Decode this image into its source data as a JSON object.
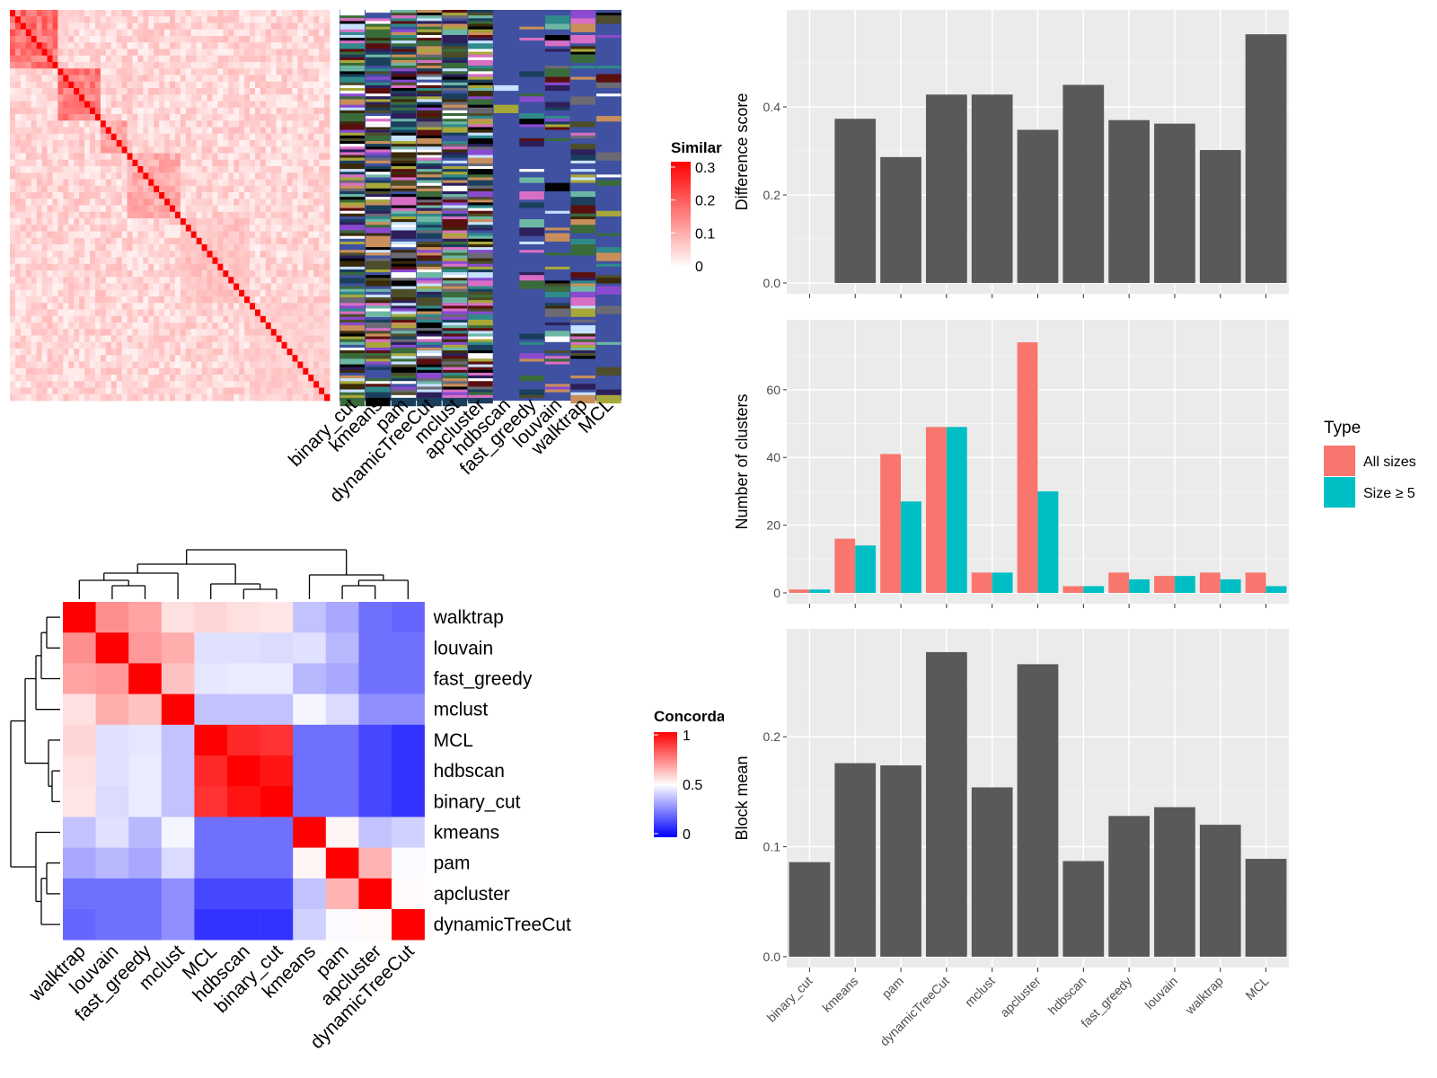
{
  "colors": {
    "panel_bg": "#ebebeb",
    "grid": "#ffffff",
    "bar": "#595959",
    "all_sizes": "#f8766d",
    "size5": "#00bfc4",
    "sim_high": "#ff0000",
    "sim_low": "#ffffff",
    "conc_high": "#ff0000",
    "conc_mid": "#ffffff",
    "conc_low": "#0000ff",
    "membership_bg": "#3f51a0"
  },
  "similarity_panel": {
    "legend_title": "Similarity",
    "legend_ticks": [
      "0.3",
      "0.2",
      "0.1",
      "0"
    ],
    "membership_columns": [
      "binary_cut",
      "kmeans",
      "pam",
      "dynamicTreeCut",
      "mclust",
      "apcluster",
      "hdbscan",
      "fast_greedy",
      "louvain",
      "walktrap",
      "MCL"
    ]
  },
  "concordance_panel": {
    "legend_title": "Concordance",
    "legend_ticks": [
      "1",
      "0.5",
      "0"
    ],
    "labels": [
      "walktrap",
      "louvain",
      "fast_greedy",
      "mclust",
      "MCL",
      "hdbscan",
      "binary_cut",
      "kmeans",
      "pam",
      "apcluster",
      "dynamicTreeCut"
    ]
  },
  "type_legend": {
    "title": "Type",
    "items": [
      {
        "label": "All sizes",
        "color": "#f8766d"
      },
      {
        "label": "Size ≥ 5",
        "color": "#00bfc4"
      }
    ]
  },
  "chart_data": [
    {
      "type": "heatmap",
      "title": "",
      "legend_title": "Similarity",
      "value_range": [
        0,
        0.3
      ],
      "legend_ticks": [
        0,
        0.1,
        0.2,
        0.3
      ]
    },
    {
      "type": "heatmap",
      "title": "",
      "legend_title": "Concordance",
      "value_range": [
        0,
        1
      ],
      "legend_ticks": [
        0,
        0.5,
        1
      ],
      "rows": [
        "walktrap",
        "louvain",
        "fast_greedy",
        "mclust",
        "MCL",
        "hdbscan",
        "binary_cut",
        "kmeans",
        "pam",
        "apcluster",
        "dynamicTreeCut"
      ],
      "columns": [
        "walktrap",
        "louvain",
        "fast_greedy",
        "mclust",
        "MCL",
        "hdbscan",
        "binary_cut",
        "kmeans",
        "pam",
        "apcluster",
        "dynamicTreeCut"
      ],
      "values": [
        [
          1.0,
          0.72,
          0.68,
          0.56,
          0.58,
          0.56,
          0.55,
          0.38,
          0.33,
          0.22,
          0.2
        ],
        [
          0.72,
          1.0,
          0.7,
          0.66,
          0.44,
          0.44,
          0.43,
          0.44,
          0.36,
          0.22,
          0.22
        ],
        [
          0.68,
          0.7,
          1.0,
          0.62,
          0.45,
          0.46,
          0.46,
          0.36,
          0.33,
          0.22,
          0.22
        ],
        [
          0.56,
          0.66,
          0.62,
          1.0,
          0.38,
          0.38,
          0.38,
          0.48,
          0.43,
          0.28,
          0.28
        ],
        [
          0.58,
          0.44,
          0.45,
          0.38,
          1.0,
          0.92,
          0.9,
          0.22,
          0.22,
          0.14,
          0.1
        ],
        [
          0.56,
          0.44,
          0.46,
          0.38,
          0.92,
          1.0,
          0.96,
          0.22,
          0.22,
          0.14,
          0.1
        ],
        [
          0.55,
          0.43,
          0.46,
          0.38,
          0.9,
          0.96,
          1.0,
          0.22,
          0.22,
          0.14,
          0.1
        ],
        [
          0.38,
          0.44,
          0.36,
          0.48,
          0.22,
          0.22,
          0.22,
          1.0,
          0.52,
          0.38,
          0.41
        ],
        [
          0.33,
          0.36,
          0.33,
          0.43,
          0.22,
          0.22,
          0.22,
          0.52,
          1.0,
          0.65,
          0.49
        ],
        [
          0.22,
          0.22,
          0.22,
          0.28,
          0.14,
          0.14,
          0.14,
          0.38,
          0.65,
          1.0,
          0.51
        ],
        [
          0.2,
          0.22,
          0.22,
          0.28,
          0.1,
          0.1,
          0.1,
          0.41,
          0.49,
          0.51,
          1.0
        ]
      ]
    },
    {
      "type": "bar",
      "title": "",
      "xlabel": "",
      "ylabel": "Difference score",
      "categories": [
        "binary_cut",
        "kmeans",
        "pam",
        "dynamicTreeCut",
        "mclust",
        "apcluster",
        "hdbscan",
        "fast_greedy",
        "louvain",
        "walktrap",
        "MCL"
      ],
      "values": [
        0,
        0.373,
        0.286,
        0.428,
        0.428,
        0.348,
        0.45,
        0.37,
        0.362,
        0.302,
        0.565
      ],
      "ylim": [
        0,
        0.6
      ],
      "yticks": [
        0,
        0.2,
        0.4
      ]
    },
    {
      "type": "bar",
      "title": "",
      "xlabel": "",
      "ylabel": "Number of clusters",
      "categories": [
        "binary_cut",
        "kmeans",
        "pam",
        "dynamicTreeCut",
        "mclust",
        "apcluster",
        "hdbscan",
        "fast_greedy",
        "louvain",
        "walktrap",
        "MCL"
      ],
      "series": [
        {
          "name": "All sizes",
          "values": [
            1,
            16,
            41,
            49,
            6,
            74,
            2,
            6,
            5,
            6,
            6
          ]
        },
        {
          "name": "Size ≥ 5",
          "values": [
            1,
            14,
            27,
            49,
            6,
            30,
            2,
            4,
            5,
            4,
            2
          ]
        }
      ],
      "ylim": [
        0,
        78
      ],
      "yticks": [
        0,
        20,
        40,
        60
      ],
      "legend_title": "Type",
      "legend_position": "right"
    },
    {
      "type": "bar",
      "title": "",
      "xlabel": "",
      "ylabel": "Block mean",
      "categories": [
        "binary_cut",
        "kmeans",
        "pam",
        "dynamicTreeCut",
        "mclust",
        "apcluster",
        "hdbscan",
        "fast_greedy",
        "louvain",
        "walktrap",
        "MCL"
      ],
      "values": [
        0.086,
        0.176,
        0.174,
        0.277,
        0.154,
        0.266,
        0.087,
        0.128,
        0.136,
        0.12,
        0.089
      ],
      "ylim": [
        0,
        0.29
      ],
      "yticks": [
        0,
        0.1,
        0.2
      ]
    }
  ]
}
